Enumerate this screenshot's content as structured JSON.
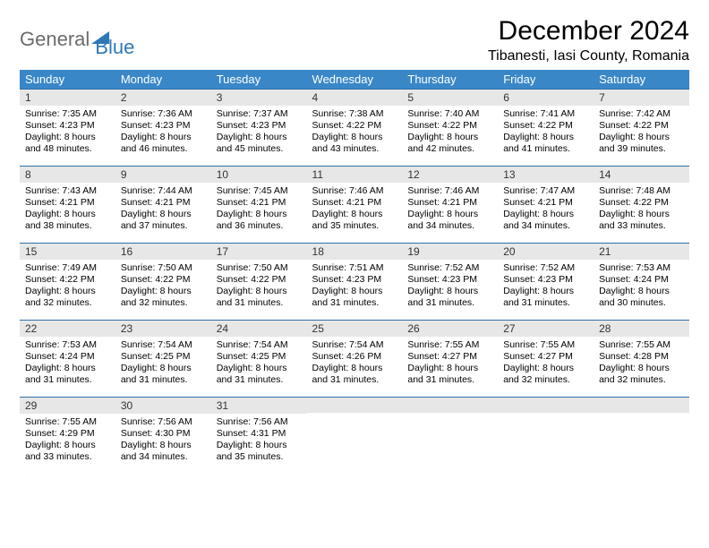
{
  "logo": {
    "word1": "General",
    "word2": "Blue"
  },
  "title": "December 2024",
  "location": "Tibanesti, Iasi County, Romania",
  "colors": {
    "header_bg": "#3a87c8",
    "header_text": "#ffffff",
    "daynum_bg": "#e7e7e7",
    "row_border": "#2f6fa8",
    "logo_gray": "#6b6b6b",
    "logo_blue": "#2f78b7"
  },
  "weekdays": [
    "Sunday",
    "Monday",
    "Tuesday",
    "Wednesday",
    "Thursday",
    "Friday",
    "Saturday"
  ],
  "weeks": [
    [
      {
        "n": "1",
        "sr": "Sunrise: 7:35 AM",
        "ss": "Sunset: 4:23 PM",
        "d1": "Daylight: 8 hours",
        "d2": "and 48 minutes."
      },
      {
        "n": "2",
        "sr": "Sunrise: 7:36 AM",
        "ss": "Sunset: 4:23 PM",
        "d1": "Daylight: 8 hours",
        "d2": "and 46 minutes."
      },
      {
        "n": "3",
        "sr": "Sunrise: 7:37 AM",
        "ss": "Sunset: 4:23 PM",
        "d1": "Daylight: 8 hours",
        "d2": "and 45 minutes."
      },
      {
        "n": "4",
        "sr": "Sunrise: 7:38 AM",
        "ss": "Sunset: 4:22 PM",
        "d1": "Daylight: 8 hours",
        "d2": "and 43 minutes."
      },
      {
        "n": "5",
        "sr": "Sunrise: 7:40 AM",
        "ss": "Sunset: 4:22 PM",
        "d1": "Daylight: 8 hours",
        "d2": "and 42 minutes."
      },
      {
        "n": "6",
        "sr": "Sunrise: 7:41 AM",
        "ss": "Sunset: 4:22 PM",
        "d1": "Daylight: 8 hours",
        "d2": "and 41 minutes."
      },
      {
        "n": "7",
        "sr": "Sunrise: 7:42 AM",
        "ss": "Sunset: 4:22 PM",
        "d1": "Daylight: 8 hours",
        "d2": "and 39 minutes."
      }
    ],
    [
      {
        "n": "8",
        "sr": "Sunrise: 7:43 AM",
        "ss": "Sunset: 4:21 PM",
        "d1": "Daylight: 8 hours",
        "d2": "and 38 minutes."
      },
      {
        "n": "9",
        "sr": "Sunrise: 7:44 AM",
        "ss": "Sunset: 4:21 PM",
        "d1": "Daylight: 8 hours",
        "d2": "and 37 minutes."
      },
      {
        "n": "10",
        "sr": "Sunrise: 7:45 AM",
        "ss": "Sunset: 4:21 PM",
        "d1": "Daylight: 8 hours",
        "d2": "and 36 minutes."
      },
      {
        "n": "11",
        "sr": "Sunrise: 7:46 AM",
        "ss": "Sunset: 4:21 PM",
        "d1": "Daylight: 8 hours",
        "d2": "and 35 minutes."
      },
      {
        "n": "12",
        "sr": "Sunrise: 7:46 AM",
        "ss": "Sunset: 4:21 PM",
        "d1": "Daylight: 8 hours",
        "d2": "and 34 minutes."
      },
      {
        "n": "13",
        "sr": "Sunrise: 7:47 AM",
        "ss": "Sunset: 4:21 PM",
        "d1": "Daylight: 8 hours",
        "d2": "and 34 minutes."
      },
      {
        "n": "14",
        "sr": "Sunrise: 7:48 AM",
        "ss": "Sunset: 4:22 PM",
        "d1": "Daylight: 8 hours",
        "d2": "and 33 minutes."
      }
    ],
    [
      {
        "n": "15",
        "sr": "Sunrise: 7:49 AM",
        "ss": "Sunset: 4:22 PM",
        "d1": "Daylight: 8 hours",
        "d2": "and 32 minutes."
      },
      {
        "n": "16",
        "sr": "Sunrise: 7:50 AM",
        "ss": "Sunset: 4:22 PM",
        "d1": "Daylight: 8 hours",
        "d2": "and 32 minutes."
      },
      {
        "n": "17",
        "sr": "Sunrise: 7:50 AM",
        "ss": "Sunset: 4:22 PM",
        "d1": "Daylight: 8 hours",
        "d2": "and 31 minutes."
      },
      {
        "n": "18",
        "sr": "Sunrise: 7:51 AM",
        "ss": "Sunset: 4:23 PM",
        "d1": "Daylight: 8 hours",
        "d2": "and 31 minutes."
      },
      {
        "n": "19",
        "sr": "Sunrise: 7:52 AM",
        "ss": "Sunset: 4:23 PM",
        "d1": "Daylight: 8 hours",
        "d2": "and 31 minutes."
      },
      {
        "n": "20",
        "sr": "Sunrise: 7:52 AM",
        "ss": "Sunset: 4:23 PM",
        "d1": "Daylight: 8 hours",
        "d2": "and 31 minutes."
      },
      {
        "n": "21",
        "sr": "Sunrise: 7:53 AM",
        "ss": "Sunset: 4:24 PM",
        "d1": "Daylight: 8 hours",
        "d2": "and 30 minutes."
      }
    ],
    [
      {
        "n": "22",
        "sr": "Sunrise: 7:53 AM",
        "ss": "Sunset: 4:24 PM",
        "d1": "Daylight: 8 hours",
        "d2": "and 31 minutes."
      },
      {
        "n": "23",
        "sr": "Sunrise: 7:54 AM",
        "ss": "Sunset: 4:25 PM",
        "d1": "Daylight: 8 hours",
        "d2": "and 31 minutes."
      },
      {
        "n": "24",
        "sr": "Sunrise: 7:54 AM",
        "ss": "Sunset: 4:25 PM",
        "d1": "Daylight: 8 hours",
        "d2": "and 31 minutes."
      },
      {
        "n": "25",
        "sr": "Sunrise: 7:54 AM",
        "ss": "Sunset: 4:26 PM",
        "d1": "Daylight: 8 hours",
        "d2": "and 31 minutes."
      },
      {
        "n": "26",
        "sr": "Sunrise: 7:55 AM",
        "ss": "Sunset: 4:27 PM",
        "d1": "Daylight: 8 hours",
        "d2": "and 31 minutes."
      },
      {
        "n": "27",
        "sr": "Sunrise: 7:55 AM",
        "ss": "Sunset: 4:27 PM",
        "d1": "Daylight: 8 hours",
        "d2": "and 32 minutes."
      },
      {
        "n": "28",
        "sr": "Sunrise: 7:55 AM",
        "ss": "Sunset: 4:28 PM",
        "d1": "Daylight: 8 hours",
        "d2": "and 32 minutes."
      }
    ],
    [
      {
        "n": "29",
        "sr": "Sunrise: 7:55 AM",
        "ss": "Sunset: 4:29 PM",
        "d1": "Daylight: 8 hours",
        "d2": "and 33 minutes."
      },
      {
        "n": "30",
        "sr": "Sunrise: 7:56 AM",
        "ss": "Sunset: 4:30 PM",
        "d1": "Daylight: 8 hours",
        "d2": "and 34 minutes."
      },
      {
        "n": "31",
        "sr": "Sunrise: 7:56 AM",
        "ss": "Sunset: 4:31 PM",
        "d1": "Daylight: 8 hours",
        "d2": "and 35 minutes."
      },
      {
        "n": "",
        "sr": "",
        "ss": "",
        "d1": "",
        "d2": ""
      },
      {
        "n": "",
        "sr": "",
        "ss": "",
        "d1": "",
        "d2": ""
      },
      {
        "n": "",
        "sr": "",
        "ss": "",
        "d1": "",
        "d2": ""
      },
      {
        "n": "",
        "sr": "",
        "ss": "",
        "d1": "",
        "d2": ""
      }
    ]
  ]
}
